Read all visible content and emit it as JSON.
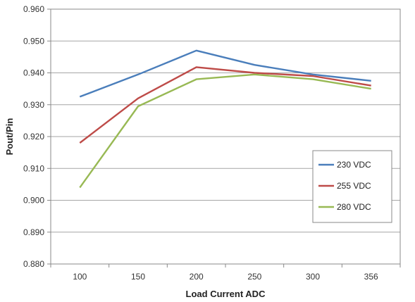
{
  "chart_data": {
    "type": "line",
    "title": "",
    "xlabel": "Load Current ADC",
    "ylabel": "Pout/Pin",
    "categories": [
      "100",
      "150",
      "200",
      "250",
      "300",
      "356"
    ],
    "ylim": [
      0.88,
      0.96
    ],
    "ytick_labels": [
      "0.880",
      "0.890",
      "0.900",
      "0.910",
      "0.920",
      "0.930",
      "0.940",
      "0.950",
      "0.960"
    ],
    "grid": "horizontal",
    "legend_position": "right-center",
    "series": [
      {
        "name": "230 VDC",
        "color": "#4a7ebb",
        "values": [
          0.9325,
          0.9395,
          0.947,
          0.9425,
          0.9395,
          0.9375
        ]
      },
      {
        "name": "255 VDC",
        "color": "#be4b48",
        "values": [
          0.918,
          0.932,
          0.9418,
          0.94,
          0.939,
          0.936
        ]
      },
      {
        "name": "280 VDC",
        "color": "#98b954",
        "values": [
          0.904,
          0.9295,
          0.938,
          0.9395,
          0.938,
          0.935
        ]
      }
    ]
  }
}
